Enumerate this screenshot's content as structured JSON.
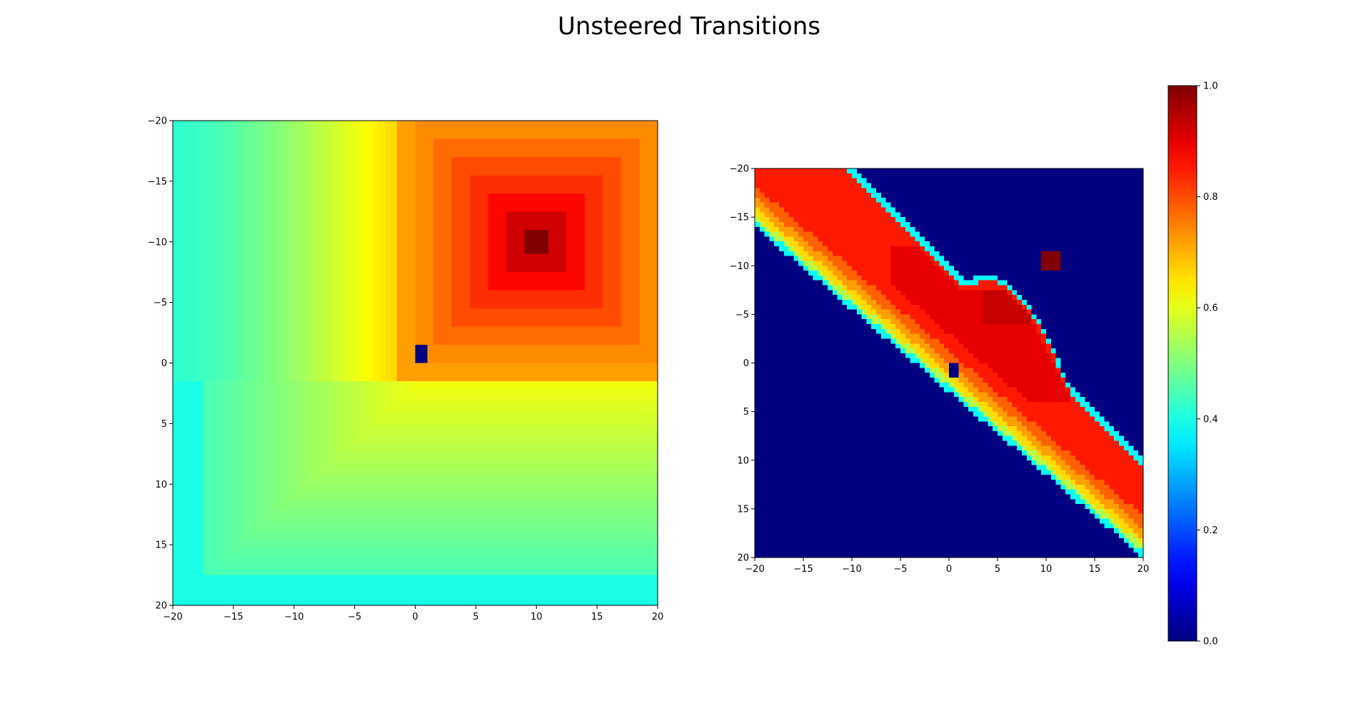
{
  "figure": {
    "title": "Unsteered Transitions"
  },
  "chart_data": [
    {
      "type": "heatmap",
      "panel": "left",
      "colormap": "jet",
      "xlim": [
        -20,
        20
      ],
      "ylim": [
        20,
        -20
      ],
      "y_inverted": true,
      "xticks": [
        -20,
        -15,
        -10,
        -5,
        0,
        5,
        10,
        15,
        20
      ],
      "yticks": [
        -20,
        -15,
        -10,
        -5,
        0,
        5,
        10,
        15,
        20
      ],
      "xtick_labels": [
        "−20",
        "−15",
        "−10",
        "−5",
        "0",
        "5",
        "10",
        "15",
        "20"
      ],
      "ytick_labels": [
        "−20",
        "−15",
        "−10",
        "−5",
        "0",
        "5",
        "10",
        "15",
        "20"
      ],
      "grid": false,
      "field": {
        "description_of_values": "value field peaking at goal cell, decaying with distance",
        "goal": [
          10,
          -10
        ],
        "goal_value": 1.0,
        "start": [
          0.5,
          -0.7
        ],
        "start_value": 0.0,
        "peak_plateau_value": 0.92,
        "ring_values": [
          0.92,
          0.87,
          0.83,
          0.8,
          0.77,
          0.74,
          0.72
        ],
        "upper_left_value_range": [
          0.42,
          0.66
        ],
        "lower_value_range": [
          0.42,
          0.62
        ],
        "corner_value": 0.38
      }
    },
    {
      "type": "heatmap",
      "panel": "right",
      "colormap": "jet",
      "xlim": [
        -20,
        20
      ],
      "ylim": [
        20,
        -20
      ],
      "y_inverted": true,
      "xticks": [
        -20,
        -15,
        -10,
        -5,
        0,
        5,
        10,
        15,
        20
      ],
      "yticks": [
        -20,
        -15,
        -10,
        -5,
        0,
        5,
        10,
        15,
        20
      ],
      "xtick_labels": [
        "−20",
        "−15",
        "−10",
        "−5",
        "0",
        "5",
        "10",
        "15",
        "20"
      ],
      "ytick_labels": [
        "−20",
        "−15",
        "−10",
        "−5",
        "0",
        "5",
        "10",
        "15",
        "20"
      ],
      "grid": false,
      "field": {
        "description_of_values": "diagonal band of visited states; background value 0",
        "background_value": 0.0,
        "band_lower_edge_line": {
          "at_x": -20,
          "y": -14,
          "at_x_end": 20,
          "y_end": 20
        },
        "band_upper_edge_line": {
          "at_x": -10,
          "y": -20,
          "at_x_end": 20,
          "y_end": 10
        },
        "band_edge_values": [
          0.38,
          0.55,
          0.66,
          0.72,
          0.78
        ],
        "band_core_value": 0.85,
        "hot_region_value": 0.9,
        "hot_core_value": 0.93,
        "goal": [
          10.5,
          -10.5
        ],
        "goal_value": 1.0,
        "start": [
          0.5,
          0.7
        ],
        "start_value": 0.0
      }
    }
  ],
  "colorbar": {
    "colormap": "jet",
    "range": [
      0.0,
      1.0
    ],
    "ticks": [
      0.0,
      0.2,
      0.4,
      0.6,
      0.8,
      1.0
    ],
    "tick_labels": [
      "0.0",
      "0.2",
      "0.4",
      "0.6",
      "0.8",
      "1.0"
    ]
  }
}
